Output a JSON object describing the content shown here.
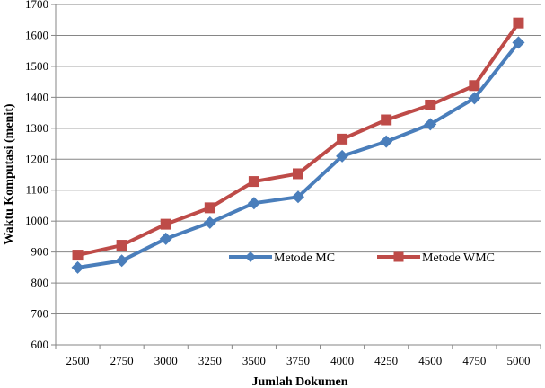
{
  "chart_data": {
    "type": "line",
    "xlabel": "Jumlah Dokumen",
    "ylabel": "Waktu Komputasi (menit)",
    "categories": [
      "2500",
      "2750",
      "3000",
      "3250",
      "3500",
      "3750",
      "4000",
      "4250",
      "4500",
      "4750",
      "5000"
    ],
    "ylim": [
      600,
      1700
    ],
    "yticks": [
      "600",
      "700",
      "800",
      "900",
      "1000",
      "1100",
      "1200",
      "1300",
      "1400",
      "1500",
      "1600",
      "1700"
    ],
    "grid": true,
    "legend_position": "center-right",
    "series": [
      {
        "name": "Metode MC",
        "color": "#4a7ebb",
        "marker": "diamond",
        "values": [
          850,
          872,
          943,
          995,
          1058,
          1078,
          1210,
          1257,
          1313,
          1397,
          1577
        ]
      },
      {
        "name": "Metode WMC",
        "color": "#be4b48",
        "marker": "square",
        "values": [
          890,
          922,
          990,
          1043,
          1128,
          1153,
          1265,
          1327,
          1375,
          1438,
          1640
        ]
      }
    ]
  }
}
